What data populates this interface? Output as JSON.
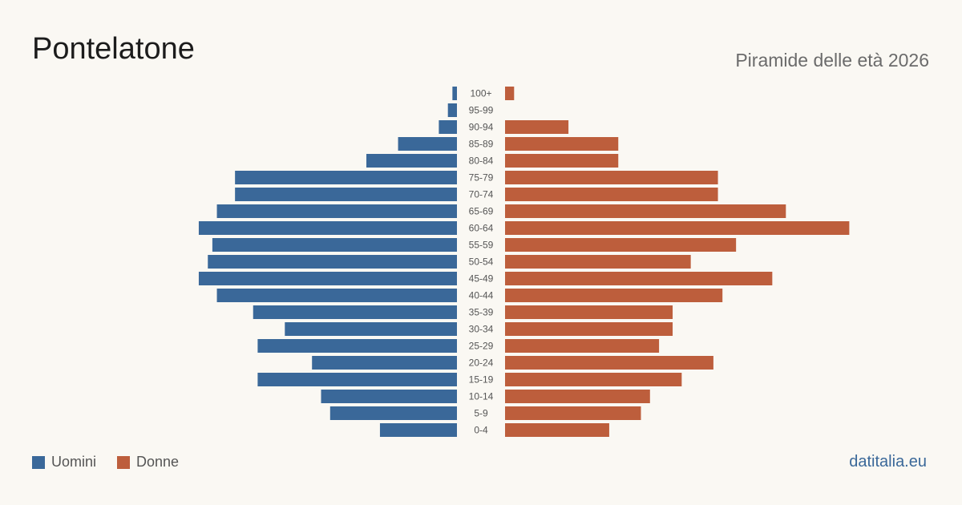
{
  "title": "Pontelatone",
  "subtitle": "Piramide delle età 2026",
  "source": "datitalia.eu",
  "colors": {
    "men": "#3a6899",
    "women": "#bd5e3c"
  },
  "chart_data": {
    "type": "bar",
    "orientation": "horizontal-pyramid",
    "categories": [
      "100+",
      "95-99",
      "90-94",
      "85-89",
      "80-84",
      "75-79",
      "70-74",
      "65-69",
      "60-64",
      "55-59",
      "50-54",
      "45-49",
      "40-44",
      "35-39",
      "30-34",
      "25-29",
      "20-24",
      "15-19",
      "10-14",
      "5-9",
      "0-4"
    ],
    "series": [
      {
        "name": "Uomini",
        "values": [
          1,
          2,
          4,
          13,
          20,
          49,
          49,
          53,
          57,
          54,
          55,
          57,
          53,
          45,
          38,
          44,
          32,
          44,
          30,
          28,
          17
        ]
      },
      {
        "name": "Donne",
        "values": [
          2,
          0,
          14,
          25,
          25,
          47,
          47,
          62,
          76,
          51,
          41,
          59,
          48,
          37,
          37,
          34,
          46,
          39,
          32,
          30,
          23
        ]
      }
    ],
    "legend": "bottom-left",
    "grid": false
  }
}
